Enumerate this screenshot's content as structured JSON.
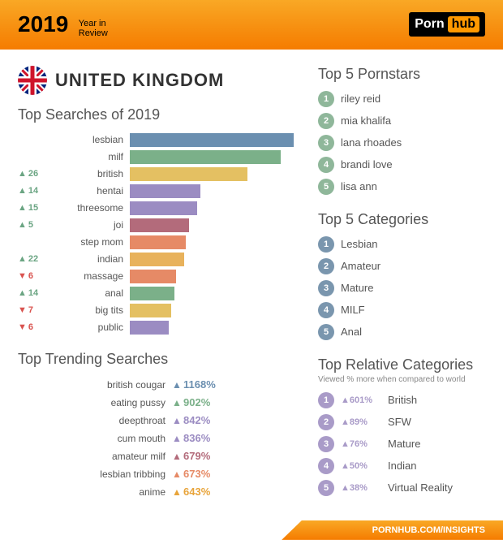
{
  "header": {
    "year": "2019",
    "subtitle_l1": "Year in",
    "subtitle_l2": "Review",
    "logo_a": "Porn",
    "logo_b": "hub"
  },
  "country": "UNITED KINGDOM",
  "top_searches": {
    "title": "Top Searches of 2019",
    "max_value": 100,
    "rows": [
      {
        "delta": null,
        "dir": null,
        "label": "lesbian",
        "value": 100,
        "color": "#6b8fb0"
      },
      {
        "delta": null,
        "dir": null,
        "label": "milf",
        "value": 92,
        "color": "#7bb089"
      },
      {
        "delta": 26,
        "dir": "up",
        "label": "british",
        "value": 72,
        "color": "#e4c062"
      },
      {
        "delta": 14,
        "dir": "up",
        "label": "hentai",
        "value": 43,
        "color": "#9b8cc2"
      },
      {
        "delta": 15,
        "dir": "up",
        "label": "threesome",
        "value": 41,
        "color": "#9b8cc2"
      },
      {
        "delta": 5,
        "dir": "up",
        "label": "joi",
        "value": 36,
        "color": "#b36b7b"
      },
      {
        "delta": null,
        "dir": null,
        "label": "step mom",
        "value": 34,
        "color": "#e68a66"
      },
      {
        "delta": 22,
        "dir": "up",
        "label": "indian",
        "value": 33,
        "color": "#e8b25c"
      },
      {
        "delta": 6,
        "dir": "dn",
        "label": "massage",
        "value": 28,
        "color": "#e68a66"
      },
      {
        "delta": 14,
        "dir": "up",
        "label": "anal",
        "value": 27,
        "color": "#7bb089"
      },
      {
        "delta": 7,
        "dir": "dn",
        "label": "big tits",
        "value": 25,
        "color": "#e4c062"
      },
      {
        "delta": 6,
        "dir": "dn",
        "label": "public",
        "value": 24,
        "color": "#9b8cc2"
      }
    ]
  },
  "trending": {
    "title": "Top Trending Searches",
    "rows": [
      {
        "label": "british cougar",
        "value": "1168%",
        "color": "#6b8fb0"
      },
      {
        "label": "eating pussy",
        "value": "902%",
        "color": "#7bb089"
      },
      {
        "label": "deepthroat",
        "value": "842%",
        "color": "#9b8cc2"
      },
      {
        "label": "cum mouth",
        "value": "836%",
        "color": "#9b8cc2"
      },
      {
        "label": "amateur milf",
        "value": "679%",
        "color": "#b36b7b"
      },
      {
        "label": "lesbian tribbing",
        "value": "673%",
        "color": "#e68a66"
      },
      {
        "label": "anime",
        "value": "643%",
        "color": "#e8a43a"
      }
    ]
  },
  "pornstars": {
    "title": "Top 5 Pornstars",
    "circle_color": "#8fb79a",
    "items": [
      "riley reid",
      "mia khalifa",
      "lana rhoades",
      "brandi love",
      "lisa ann"
    ]
  },
  "categories": {
    "title": "Top 5 Categories",
    "circle_color": "#7a96ae",
    "items": [
      "Lesbian",
      "Amateur",
      "Mature",
      "MILF",
      "Anal"
    ]
  },
  "relative": {
    "title": "Top Relative Categories",
    "subtitle": "Viewed % more when compared to world",
    "circle_color": "#a99bc8",
    "delta_color": "#a99bc8",
    "items": [
      {
        "delta": "601%",
        "label": "British"
      },
      {
        "delta": "89%",
        "label": "SFW"
      },
      {
        "delta": "76%",
        "label": "Mature"
      },
      {
        "delta": "50%",
        "label": "Indian"
      },
      {
        "delta": "38%",
        "label": "Virtual Reality"
      }
    ]
  },
  "footer": "PORNHUB.COM/INSIGHTS",
  "colors": {
    "up": "#6ba583",
    "dn": "#d9534f"
  }
}
